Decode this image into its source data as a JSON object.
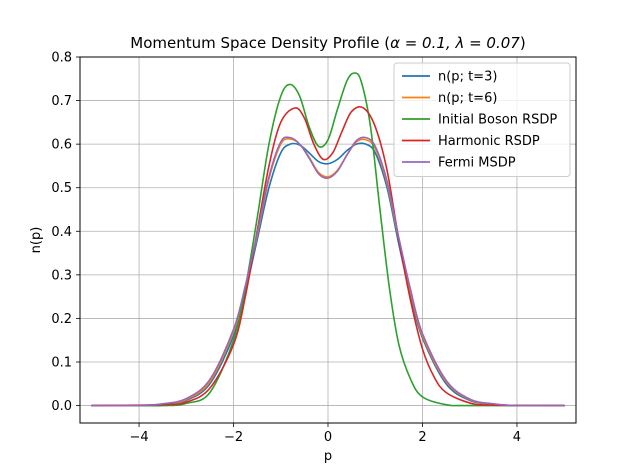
{
  "chart_data": {
    "type": "line",
    "title_prefix": "Momentum Space Density Profile (",
    "alpha_text": "α = 0.1, ",
    "lambda_text": "λ = 0.07",
    "title_suffix": ")",
    "xlabel": "p",
    "ylabel": "n(p)",
    "xlim": [
      -5.25,
      5.25
    ],
    "ylim": [
      -0.04,
      0.8
    ],
    "xticks": [
      -4,
      -2,
      0,
      2,
      4
    ],
    "xtick_labels": [
      "−4",
      "−2",
      "0",
      "2",
      "4"
    ],
    "yticks": [
      0.0,
      0.1,
      0.2,
      0.3,
      0.4,
      0.5,
      0.6,
      0.7,
      0.8
    ],
    "ytick_labels": [
      "0.0",
      "0.1",
      "0.2",
      "0.3",
      "0.4",
      "0.5",
      "0.6",
      "0.7",
      "0.8"
    ],
    "grid": true,
    "legend_position": "top-right",
    "series": [
      {
        "name": "n(p; t=3)",
        "color": "#1f77b4",
        "x": [
          -5,
          -4,
          -3.5,
          -3,
          -2.5,
          -2,
          -1.75,
          -1.5,
          -1.25,
          -1,
          -0.8,
          -0.6,
          -0.4,
          -0.2,
          0,
          0.2,
          0.4,
          0.6,
          0.8,
          1,
          1.25,
          1.5,
          1.75,
          2,
          2.5,
          3,
          3.5,
          4,
          5
        ],
        "y": [
          0,
          0,
          0.003,
          0.012,
          0.05,
          0.16,
          0.26,
          0.38,
          0.5,
          0.58,
          0.6,
          0.598,
          0.58,
          0.56,
          0.555,
          0.565,
          0.585,
          0.6,
          0.6,
          0.58,
          0.5,
          0.37,
          0.25,
          0.155,
          0.05,
          0.012,
          0.003,
          0,
          0
        ]
      },
      {
        "name": "n(p; t=6)",
        "color": "#ff7f0e",
        "x": [
          -5,
          -4,
          -3.5,
          -3,
          -2.5,
          -2,
          -1.75,
          -1.5,
          -1.25,
          -1,
          -0.8,
          -0.6,
          -0.4,
          -0.2,
          0,
          0.2,
          0.4,
          0.6,
          0.8,
          1,
          1.25,
          1.5,
          1.75,
          2,
          2.5,
          3,
          3.5,
          4,
          5
        ],
        "y": [
          0,
          0,
          0.003,
          0.014,
          0.055,
          0.17,
          0.27,
          0.39,
          0.52,
          0.6,
          0.612,
          0.6,
          0.57,
          0.535,
          0.525,
          0.54,
          0.575,
          0.605,
          0.61,
          0.59,
          0.51,
          0.38,
          0.26,
          0.16,
          0.055,
          0.014,
          0.003,
          0,
          0
        ]
      },
      {
        "name": "Initial Boson RSDP",
        "color": "#2ca02c",
        "x": [
          -5,
          -3.5,
          -3,
          -2.5,
          -2,
          -1.75,
          -1.5,
          -1.25,
          -1,
          -0.8,
          -0.6,
          -0.4,
          -0.2,
          0,
          0.2,
          0.4,
          0.55,
          0.7,
          0.9,
          1.1,
          1.3,
          1.5,
          1.75,
          2,
          2.5,
          3,
          5
        ],
        "y": [
          0,
          0,
          0.005,
          0.03,
          0.15,
          0.27,
          0.43,
          0.6,
          0.71,
          0.737,
          0.71,
          0.64,
          0.595,
          0.61,
          0.68,
          0.745,
          0.763,
          0.745,
          0.64,
          0.45,
          0.27,
          0.14,
          0.06,
          0.02,
          0.002,
          0,
          0
        ]
      },
      {
        "name": "Harmonic RSDP",
        "color": "#d62728",
        "x": [
          -5,
          -3.5,
          -3,
          -2.5,
          -2,
          -1.75,
          -1.5,
          -1.25,
          -1,
          -0.7,
          -0.5,
          -0.3,
          -0.1,
          0.1,
          0.3,
          0.5,
          0.75,
          1,
          1.25,
          1.5,
          1.75,
          2,
          2.25,
          2.5,
          3,
          3.5,
          5
        ],
        "y": [
          0,
          0.002,
          0.008,
          0.04,
          0.14,
          0.25,
          0.4,
          0.55,
          0.65,
          0.683,
          0.66,
          0.6,
          0.565,
          0.58,
          0.63,
          0.675,
          0.683,
          0.64,
          0.54,
          0.38,
          0.24,
          0.13,
          0.065,
          0.03,
          0.006,
          0.001,
          0
        ]
      },
      {
        "name": "Fermi MSDP",
        "color": "#9467bd",
        "x": [
          -5,
          -4,
          -3.5,
          -3,
          -2.5,
          -2,
          -1.75,
          -1.5,
          -1.25,
          -1,
          -0.8,
          -0.6,
          -0.4,
          -0.2,
          0,
          0.2,
          0.4,
          0.6,
          0.8,
          1,
          1.25,
          1.5,
          1.75,
          2,
          2.5,
          3,
          3.5,
          4,
          5
        ],
        "y": [
          0,
          0,
          0.004,
          0.016,
          0.06,
          0.175,
          0.275,
          0.395,
          0.525,
          0.605,
          0.615,
          0.6,
          0.568,
          0.532,
          0.522,
          0.538,
          0.575,
          0.608,
          0.615,
          0.595,
          0.515,
          0.385,
          0.265,
          0.165,
          0.058,
          0.015,
          0.004,
          0,
          0
        ]
      }
    ]
  }
}
